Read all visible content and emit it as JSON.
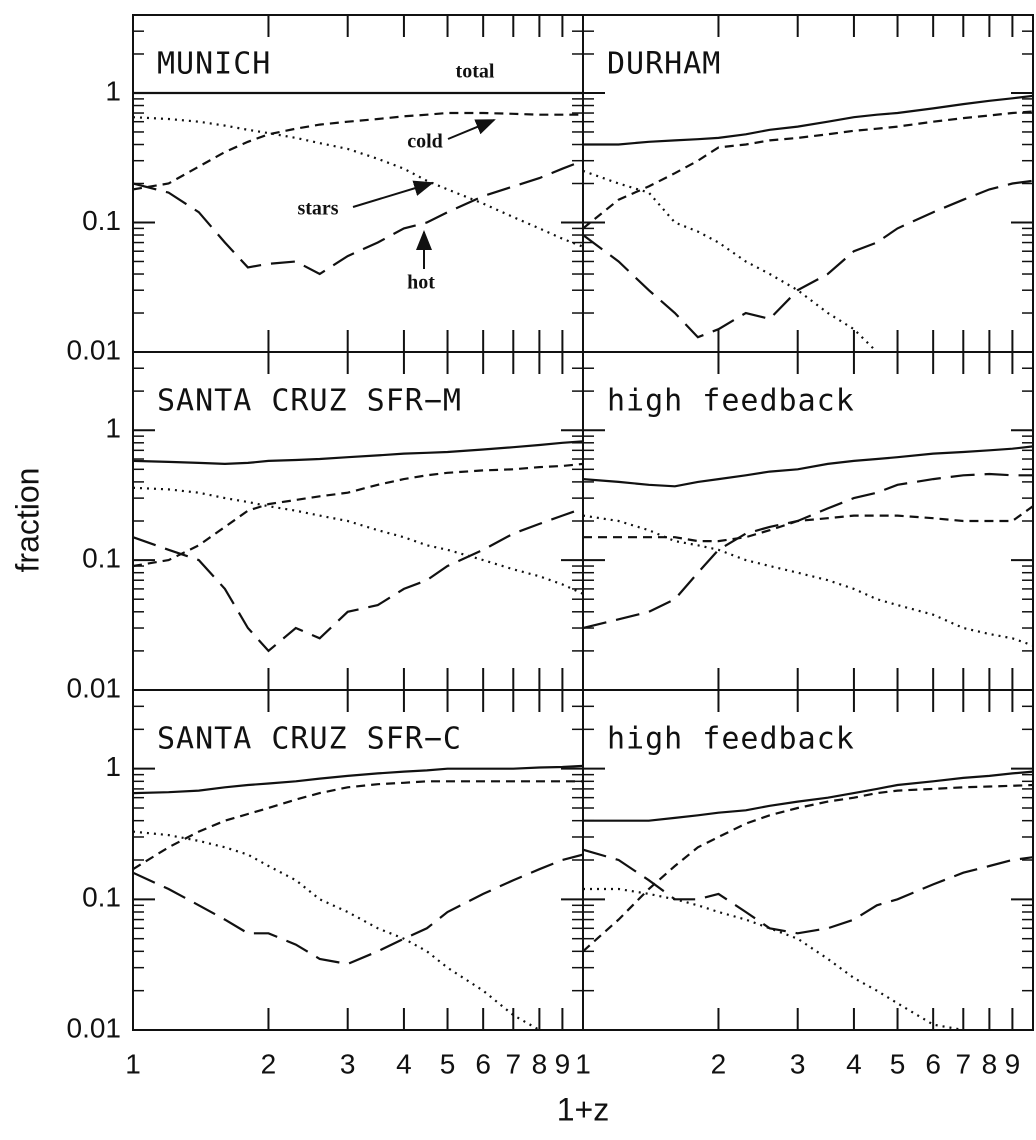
{
  "figure": {
    "ylabel": "fraction",
    "xlabel": "1+z"
  },
  "chart_data": [
    {
      "type": "line",
      "title": "MUNICH",
      "xscale": "log",
      "yscale": "log",
      "xlim": [
        1,
        10
      ],
      "ylim": [
        0.01,
        4
      ],
      "yticks": [
        0.01,
        0.1,
        1
      ],
      "x": [
        1,
        1.2,
        1.4,
        1.6,
        1.8,
        2,
        2.3,
        2.6,
        3,
        3.5,
        4,
        4.5,
        5,
        6,
        7,
        8,
        9,
        10
      ],
      "series": [
        {
          "name": "total",
          "style": "solid",
          "values": [
            1,
            1,
            1,
            1,
            1,
            1,
            1,
            1,
            1,
            1,
            1,
            1,
            1,
            1,
            1,
            1,
            1,
            1
          ]
        },
        {
          "name": "cold",
          "style": "dashed",
          "values": [
            0.18,
            0.2,
            0.27,
            0.35,
            0.42,
            0.48,
            0.53,
            0.57,
            0.6,
            0.63,
            0.66,
            0.68,
            0.7,
            0.7,
            0.69,
            0.68,
            0.68,
            0.68
          ]
        },
        {
          "name": "stars",
          "style": "dotted",
          "values": [
            0.65,
            0.63,
            0.6,
            0.56,
            0.52,
            0.49,
            0.45,
            0.41,
            0.37,
            0.31,
            0.26,
            0.21,
            0.18,
            0.14,
            0.11,
            0.09,
            0.075,
            0.065
          ]
        },
        {
          "name": "hot",
          "style": "long-dashed",
          "values": [
            0.2,
            0.17,
            0.12,
            0.07,
            0.045,
            0.048,
            0.05,
            0.04,
            0.055,
            0.07,
            0.09,
            0.1,
            0.12,
            0.16,
            0.19,
            0.22,
            0.26,
            0.3
          ]
        }
      ]
    },
    {
      "type": "line",
      "title": "DURHAM",
      "xscale": "log",
      "yscale": "log",
      "xlim": [
        1,
        10
      ],
      "ylim": [
        0.01,
        4
      ],
      "x": [
        1,
        1.2,
        1.4,
        1.6,
        1.8,
        2,
        2.3,
        2.6,
        3,
        3.5,
        4,
        4.5,
        5,
        6,
        7,
        8,
        9,
        10
      ],
      "series": [
        {
          "style": "solid",
          "values": [
            0.4,
            0.4,
            0.42,
            0.43,
            0.44,
            0.45,
            0.48,
            0.52,
            0.55,
            0.6,
            0.65,
            0.68,
            0.7,
            0.76,
            0.82,
            0.87,
            0.91,
            0.95
          ]
        },
        {
          "style": "dashed",
          "values": [
            0.09,
            0.15,
            0.19,
            0.24,
            0.3,
            0.38,
            0.4,
            0.43,
            0.45,
            0.48,
            0.51,
            0.53,
            0.55,
            0.6,
            0.64,
            0.67,
            0.7,
            0.72
          ]
        },
        {
          "style": "dotted",
          "values": [
            0.25,
            0.2,
            0.17,
            0.1,
            0.085,
            0.07,
            0.05,
            0.04,
            0.03,
            0.02,
            0.015,
            0.01,
            null,
            null,
            null,
            null,
            null,
            null
          ]
        },
        {
          "style": "long-dashed",
          "values": [
            0.08,
            0.05,
            0.03,
            0.02,
            0.013,
            0.015,
            0.02,
            0.018,
            0.03,
            0.04,
            0.06,
            0.07,
            0.09,
            0.12,
            0.15,
            0.18,
            0.2,
            0.21
          ]
        }
      ]
    },
    {
      "type": "line",
      "title": "SANTA CRUZ SFR−M",
      "xscale": "log",
      "yscale": "log",
      "xlim": [
        1,
        10
      ],
      "ylim": [
        0.01,
        4
      ],
      "yticks": [
        0.01,
        0.1,
        1
      ],
      "x": [
        1,
        1.2,
        1.4,
        1.6,
        1.8,
        2,
        2.3,
        2.6,
        3,
        3.5,
        4,
        4.5,
        5,
        6,
        7,
        8,
        9,
        10
      ],
      "series": [
        {
          "style": "solid",
          "values": [
            0.58,
            0.57,
            0.56,
            0.55,
            0.56,
            0.58,
            0.59,
            0.6,
            0.62,
            0.64,
            0.66,
            0.67,
            0.68,
            0.71,
            0.74,
            0.77,
            0.8,
            0.82
          ]
        },
        {
          "style": "dashed",
          "values": [
            0.09,
            0.1,
            0.13,
            0.18,
            0.24,
            0.27,
            0.29,
            0.31,
            0.33,
            0.38,
            0.42,
            0.45,
            0.47,
            0.49,
            0.5,
            0.52,
            0.53,
            0.55
          ]
        },
        {
          "style": "dotted",
          "values": [
            0.36,
            0.35,
            0.33,
            0.3,
            0.28,
            0.26,
            0.24,
            0.22,
            0.2,
            0.17,
            0.15,
            0.13,
            0.12,
            0.1,
            0.085,
            0.075,
            0.065,
            0.055
          ]
        },
        {
          "style": "long-dashed",
          "values": [
            0.15,
            0.12,
            0.1,
            0.06,
            0.03,
            0.02,
            0.03,
            0.025,
            0.04,
            0.045,
            0.06,
            0.07,
            0.09,
            0.12,
            0.16,
            0.19,
            0.22,
            0.25
          ]
        }
      ]
    },
    {
      "type": "line",
      "title": "high feedback",
      "xscale": "log",
      "yscale": "log",
      "xlim": [
        1,
        10
      ],
      "ylim": [
        0.01,
        4
      ],
      "x": [
        1,
        1.2,
        1.4,
        1.6,
        1.8,
        2,
        2.3,
        2.6,
        3,
        3.5,
        4,
        4.5,
        5,
        6,
        7,
        8,
        9,
        10
      ],
      "series": [
        {
          "style": "solid",
          "values": [
            0.42,
            0.4,
            0.38,
            0.37,
            0.4,
            0.42,
            0.45,
            0.48,
            0.5,
            0.55,
            0.58,
            0.6,
            0.62,
            0.66,
            0.68,
            0.7,
            0.72,
            0.75
          ]
        },
        {
          "style": "dashed",
          "values": [
            0.15,
            0.15,
            0.15,
            0.15,
            0.14,
            0.14,
            0.15,
            0.17,
            0.2,
            0.21,
            0.22,
            0.22,
            0.22,
            0.21,
            0.2,
            0.2,
            0.2,
            0.26
          ]
        },
        {
          "style": "dotted",
          "values": [
            0.22,
            0.2,
            0.17,
            0.14,
            0.13,
            0.12,
            0.1,
            0.09,
            0.08,
            0.07,
            0.06,
            0.05,
            0.045,
            0.038,
            0.03,
            0.027,
            0.025,
            0.022
          ]
        },
        {
          "style": "long-dashed",
          "values": [
            0.03,
            0.035,
            0.04,
            0.05,
            0.08,
            0.12,
            0.16,
            0.18,
            0.2,
            0.25,
            0.3,
            0.33,
            0.38,
            0.42,
            0.45,
            0.46,
            0.45,
            0.45
          ]
        }
      ]
    },
    {
      "type": "line",
      "title": "SANTA CRUZ SFR−C",
      "xscale": "log",
      "yscale": "log",
      "xlim": [
        1,
        10
      ],
      "ylim": [
        0.01,
        4
      ],
      "yticks": [
        0.01,
        0.1,
        1
      ],
      "xticks": [
        1,
        2,
        3,
        4,
        5,
        6,
        7,
        8,
        9
      ],
      "x": [
        1,
        1.2,
        1.4,
        1.6,
        1.8,
        2,
        2.3,
        2.6,
        3,
        3.5,
        4,
        4.5,
        5,
        6,
        7,
        8,
        9,
        10
      ],
      "series": [
        {
          "style": "solid",
          "values": [
            0.65,
            0.66,
            0.68,
            0.72,
            0.75,
            0.77,
            0.8,
            0.84,
            0.88,
            0.92,
            0.95,
            0.97,
            1,
            1,
            1,
            1.02,
            1.03,
            1.05
          ]
        },
        {
          "style": "dashed",
          "values": [
            0.17,
            0.25,
            0.33,
            0.4,
            0.45,
            0.5,
            0.58,
            0.65,
            0.72,
            0.76,
            0.78,
            0.8,
            0.8,
            0.8,
            0.8,
            0.8,
            0.8,
            0.8
          ]
        },
        {
          "style": "dotted",
          "values": [
            0.33,
            0.31,
            0.28,
            0.25,
            0.22,
            0.18,
            0.14,
            0.1,
            0.08,
            0.06,
            0.05,
            0.04,
            0.03,
            0.02,
            0.013,
            0.01,
            null,
            null
          ]
        },
        {
          "style": "long-dashed",
          "values": [
            0.16,
            0.12,
            0.09,
            0.07,
            0.055,
            0.055,
            0.045,
            0.035,
            0.032,
            0.04,
            0.05,
            0.06,
            0.08,
            0.11,
            0.14,
            0.17,
            0.2,
            0.22
          ]
        }
      ]
    },
    {
      "type": "line",
      "title": "high feedback",
      "xscale": "log",
      "yscale": "log",
      "xlim": [
        1,
        10
      ],
      "ylim": [
        0.01,
        4
      ],
      "xticks": [
        1,
        2,
        3,
        4,
        5,
        6,
        7,
        8,
        9
      ],
      "x": [
        1,
        1.2,
        1.4,
        1.6,
        1.8,
        2,
        2.3,
        2.6,
        3,
        3.5,
        4,
        4.5,
        5,
        6,
        7,
        8,
        9,
        10
      ],
      "series": [
        {
          "style": "solid",
          "values": [
            0.4,
            0.4,
            0.4,
            0.42,
            0.44,
            0.46,
            0.48,
            0.52,
            0.56,
            0.6,
            0.65,
            0.7,
            0.75,
            0.8,
            0.85,
            0.88,
            0.92,
            0.95
          ]
        },
        {
          "style": "dashed",
          "values": [
            0.04,
            0.07,
            0.12,
            0.18,
            0.25,
            0.3,
            0.38,
            0.44,
            0.5,
            0.56,
            0.6,
            0.65,
            0.68,
            0.7,
            0.72,
            0.73,
            0.74,
            0.75
          ]
        },
        {
          "style": "dotted",
          "values": [
            0.12,
            0.12,
            0.11,
            0.1,
            0.09,
            0.08,
            0.07,
            0.06,
            0.05,
            0.035,
            0.025,
            0.02,
            0.016,
            0.011,
            0.01,
            null,
            null,
            null
          ]
        },
        {
          "style": "long-dashed",
          "values": [
            0.24,
            0.2,
            0.14,
            0.1,
            0.1,
            0.11,
            0.08,
            0.06,
            0.055,
            0.06,
            0.07,
            0.09,
            0.1,
            0.13,
            0.16,
            0.18,
            0.2,
            0.21
          ]
        }
      ]
    }
  ]
}
